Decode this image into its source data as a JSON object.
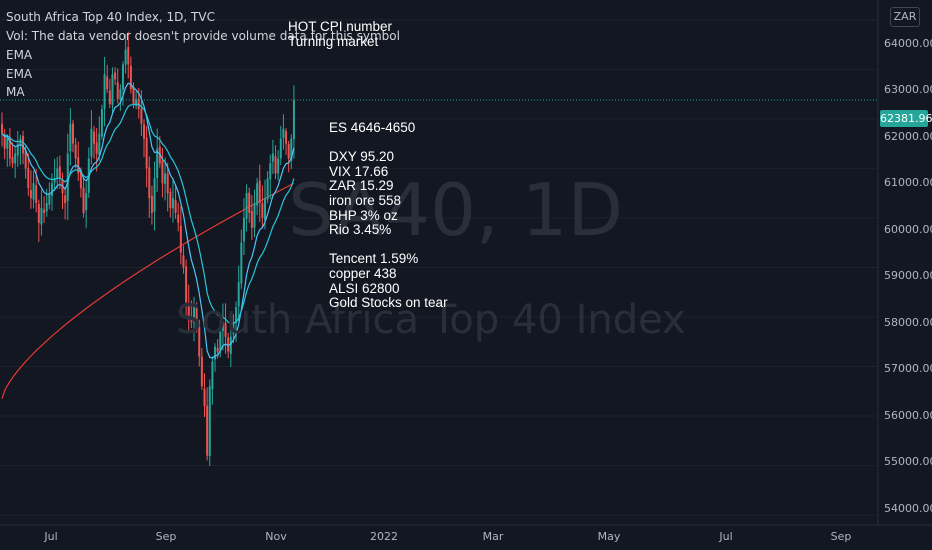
{
  "legend": {
    "title": "South Africa Top 40 Index, 1D, TVC",
    "vol": "Vol: The data vendor doesn't provide volume data for this symbol",
    "ema1": "EMA",
    "ema2": "EMA",
    "ma": "MA"
  },
  "watermark": {
    "symbol": "SA40, 1D",
    "name": "South Africa Top 40 Index"
  },
  "notes": {
    "top": [
      "HOT CPI number",
      "Turning market"
    ],
    "side": [
      "ES 4646-4650",
      "",
      "DXY 95.20",
      "VIX 17.66",
      "ZAR 15.29",
      "iron ore 558",
      "BHP 3% oz",
      "Rio 3.45%",
      "",
      "Tencent 1.59%",
      "copper 438",
      "ALSI 62800",
      "Gold Stocks on tear"
    ]
  },
  "currency": "ZAR",
  "last_price": "62381.96",
  "colors": {
    "background": "#131722",
    "up": "#26a69a",
    "down": "#ef5350",
    "ema_fast": "#4fc3f7",
    "ema_slow": "#26c6da",
    "ma": "#e53935",
    "grid": "#1e222d",
    "axis_text": "#b2b5be"
  },
  "chart_data": {
    "type": "candlestick",
    "title": "South Africa Top 40 Index, 1D, TVC",
    "y_axis": {
      "labels": [
        "64000.00",
        "63000.00",
        "62000.00",
        "61000.00",
        "60000.00",
        "59000.00",
        "58000.00",
        "57000.00",
        "56000.00",
        "55000.00",
        "54000.00"
      ],
      "min": 53800,
      "max": 64400
    },
    "x_axis": {
      "labels": [
        "Jul",
        "Sep",
        "Nov",
        "2022",
        "Mar",
        "May",
        "Jul",
        "Sep"
      ]
    },
    "last_price": 62381.96,
    "closes": [
      61700,
      61400,
      61600,
      61200,
      61100,
      61300,
      61500,
      61600,
      61300,
      61000,
      60600,
      60400,
      60700,
      60300,
      59900,
      60200,
      60100,
      60300,
      60500,
      60700,
      60800,
      61000,
      60800,
      60500,
      60300,
      61300,
      61900,
      61500,
      61200,
      60900,
      60600,
      60100,
      60500,
      61200,
      61800,
      61500,
      61300,
      61700,
      62200,
      62900,
      62600,
      62300,
      62900,
      62800,
      62400,
      62600,
      63100,
      63400,
      63100,
      62600,
      62300,
      62400,
      62200,
      61900,
      61600,
      61000,
      60400,
      60100,
      60800,
      61400,
      61100,
      60700,
      60900,
      60500,
      60200,
      60400,
      60100,
      59900,
      59300,
      59000,
      58300,
      58000,
      57900,
      58200,
      57800,
      57200,
      56600,
      56200,
      55200,
      56600,
      57100,
      57400,
      57300,
      57700,
      57900,
      57600,
      57300,
      57600,
      57900,
      58200,
      58700,
      59500,
      60000,
      60500,
      60100,
      59800,
      60300,
      60700,
      60300,
      60000,
      60400,
      60800,
      61100,
      61300,
      60900,
      61200,
      61600,
      61800,
      61500,
      61200,
      61600,
      62381.96
    ],
    "series": [
      {
        "name": "EMA",
        "kind": "ema",
        "period": 10
      },
      {
        "name": "EMA",
        "kind": "ema",
        "period": 20
      },
      {
        "name": "MA",
        "kind": "sma",
        "period": 200
      }
    ]
  }
}
